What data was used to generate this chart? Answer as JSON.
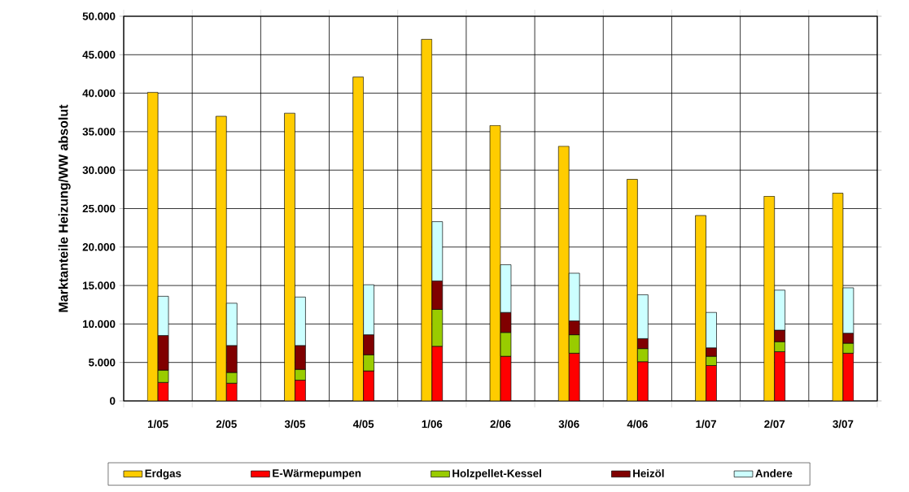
{
  "chart_data": {
    "type": "bar",
    "ylabel": "Marktanteile Heizung/WW absolut",
    "categories": [
      "1/05",
      "2/05",
      "3/05",
      "4/05",
      "1/06",
      "2/06",
      "3/06",
      "4/06",
      "1/07",
      "2/07",
      "3/07"
    ],
    "series": [
      {
        "name": "Erdgas",
        "color": "#ffcc00",
        "values": [
          40100,
          37000,
          37400,
          42100,
          47000,
          35800,
          33100,
          28800,
          24100,
          26600,
          27000
        ]
      },
      {
        "name": "E-Wärmepumpen",
        "color": "#ff0000",
        "values": [
          2400,
          2300,
          2700,
          3900,
          7100,
          5800,
          6200,
          5100,
          4600,
          6400,
          6200
        ],
        "base": [
          0,
          0,
          0,
          0,
          0,
          0,
          0,
          0,
          0,
          0,
          0
        ]
      },
      {
        "name": "Holzpellet-Kessel",
        "color": "#99cc00",
        "values": [
          1600,
          1400,
          1400,
          2100,
          4800,
          3100,
          2400,
          1700,
          1200,
          1300,
          1300
        ],
        "base": [
          2400,
          2300,
          2700,
          3900,
          7100,
          5800,
          6200,
          5100,
          4600,
          6400,
          6200
        ]
      },
      {
        "name": "Heizöl",
        "color": "#800000",
        "values": [
          4500,
          3500,
          3100,
          2600,
          3700,
          2600,
          1800,
          1300,
          1100,
          1500,
          1300
        ],
        "base": [
          4000,
          3700,
          4100,
          6000,
          11900,
          8900,
          8600,
          6800,
          5800,
          7700,
          7500
        ]
      },
      {
        "name": "Andere",
        "color": "#ccffff",
        "values": [
          5100,
          5500,
          6300,
          6500,
          7700,
          6200,
          6200,
          5700,
          4600,
          5200,
          5900
        ],
        "base": [
          8500,
          7200,
          7200,
          8600,
          15600,
          11500,
          10400,
          8100,
          6900,
          9200,
          8800
        ]
      }
    ],
    "ylim": [
      0,
      50000
    ],
    "yticks": [
      {
        "value": 0,
        "label": "0"
      },
      {
        "value": 5000,
        "label": "5.000"
      },
      {
        "value": 10000,
        "label": "10.000"
      },
      {
        "value": 15000,
        "label": "15.000"
      },
      {
        "value": 20000,
        "label": "20.000"
      },
      {
        "value": 25000,
        "label": "25.000"
      },
      {
        "value": 30000,
        "label": "30.000"
      },
      {
        "value": 35000,
        "label": "35.000"
      },
      {
        "value": 40000,
        "label": "40.000"
      },
      {
        "value": 45000,
        "label": "45.000"
      },
      {
        "value": 50000,
        "label": "50.000"
      }
    ],
    "grid": true,
    "legend": "bottom"
  }
}
